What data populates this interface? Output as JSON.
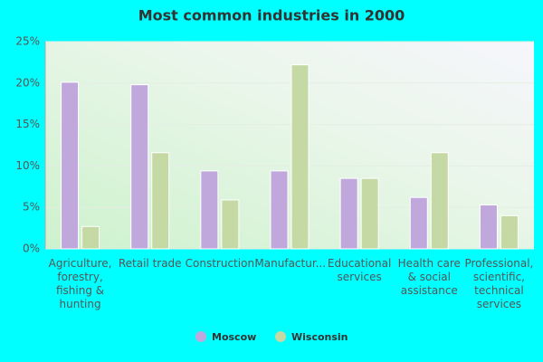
{
  "chart_data": {
    "type": "bar",
    "title": "Most common industries in 2000",
    "categories": [
      "Agriculture, forestry, fishing & hunting",
      "Retail trade",
      "Construction",
      "Manufactur...",
      "Educational services",
      "Health care & social assistance",
      "Professional, scientific, technical services"
    ],
    "series": [
      {
        "name": "Moscow",
        "color": "#c0a8dc",
        "values": [
          20.1,
          19.8,
          9.4,
          9.4,
          8.5,
          6.2,
          5.3
        ]
      },
      {
        "name": "Wisconsin",
        "color": "#c5d9a5",
        "values": [
          2.7,
          11.6,
          5.9,
          22.2,
          8.5,
          11.6,
          4.0
        ]
      }
    ],
    "ylim": [
      0,
      25
    ],
    "yticks": [
      {
        "value": 0,
        "label": "0%"
      },
      {
        "value": 5,
        "label": "5%"
      },
      {
        "value": 10,
        "label": "10%"
      },
      {
        "value": 15,
        "label": "15%"
      },
      {
        "value": 20,
        "label": "20%"
      },
      {
        "value": 25,
        "label": "25%"
      }
    ],
    "grid": true,
    "legend": "bottom"
  }
}
